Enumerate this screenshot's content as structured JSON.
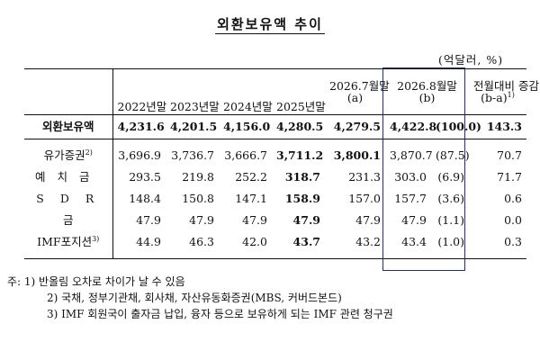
{
  "title": "외환보유액 추이",
  "unit": "(억달러, %)",
  "headers": {
    "col1": "2022년말",
    "col2": "2023년말",
    "col3": "2024년말",
    "col4": "2025년말",
    "col5_l1": "2026.7월말",
    "col5_l2": "(a)",
    "col6_l1": "2026.8월말",
    "col6_l2": "(b)",
    "col7_l1": "전월대비 증감",
    "col7_l2": "(b-a)",
    "col7_sup": "1)"
  },
  "rows": [
    {
      "label": "외환보유액",
      "v1": "4,231.6",
      "v2": "4,201.5",
      "v3": "4,156.0",
      "v4": "4,280.5",
      "v5": "4,279.5",
      "v6": "4,422.8",
      "share": "(100.0)",
      "change": "143.3"
    },
    {
      "label": "유가증권",
      "sup": "2)",
      "v1": "3,696.9",
      "v2": "3,736.7",
      "v3": "3,666.7",
      "v4": "3,711.2",
      "v5": "3,800.1",
      "v6": "3,870.7",
      "share": "(87.5)",
      "change": "70.7"
    },
    {
      "label": "예치금",
      "v1": "293.5",
      "v2": "219.8",
      "v3": "252.2",
      "v4": "318.7",
      "v5": "231.3",
      "v6": "303.0",
      "share": "(6.9)",
      "change": "71.7"
    },
    {
      "label": "S D R",
      "v1": "148.4",
      "v2": "150.8",
      "v3": "147.1",
      "v4": "158.9",
      "v5": "157.0",
      "v6": "157.7",
      "share": "(3.6)",
      "change": "0.6"
    },
    {
      "label": "금",
      "v1": "47.9",
      "v2": "47.9",
      "v3": "47.9",
      "v4": "47.9",
      "v5": "47.9",
      "v6": "47.9",
      "share": "(1.1)",
      "change": "0.0"
    },
    {
      "label": "IMF포지션",
      "sup": "3)",
      "v1": "44.9",
      "v2": "46.3",
      "v3": "42.0",
      "v4": "43.7",
      "v5": "43.2",
      "v6": "43.4",
      "share": "(1.0)",
      "change": "0.3"
    }
  ],
  "notes": {
    "n1": "주: 1) 반올림 오차로 차이가 날 수 있음",
    "n2": "2) 국채, 정부기관채, 회사채, 자산유동화증권(MBS, 커버드본드)",
    "n3": "3) IMF 회원국이 출자금 납입, 융자 등으로 보유하게 되는 IMF 관련 청구권"
  }
}
